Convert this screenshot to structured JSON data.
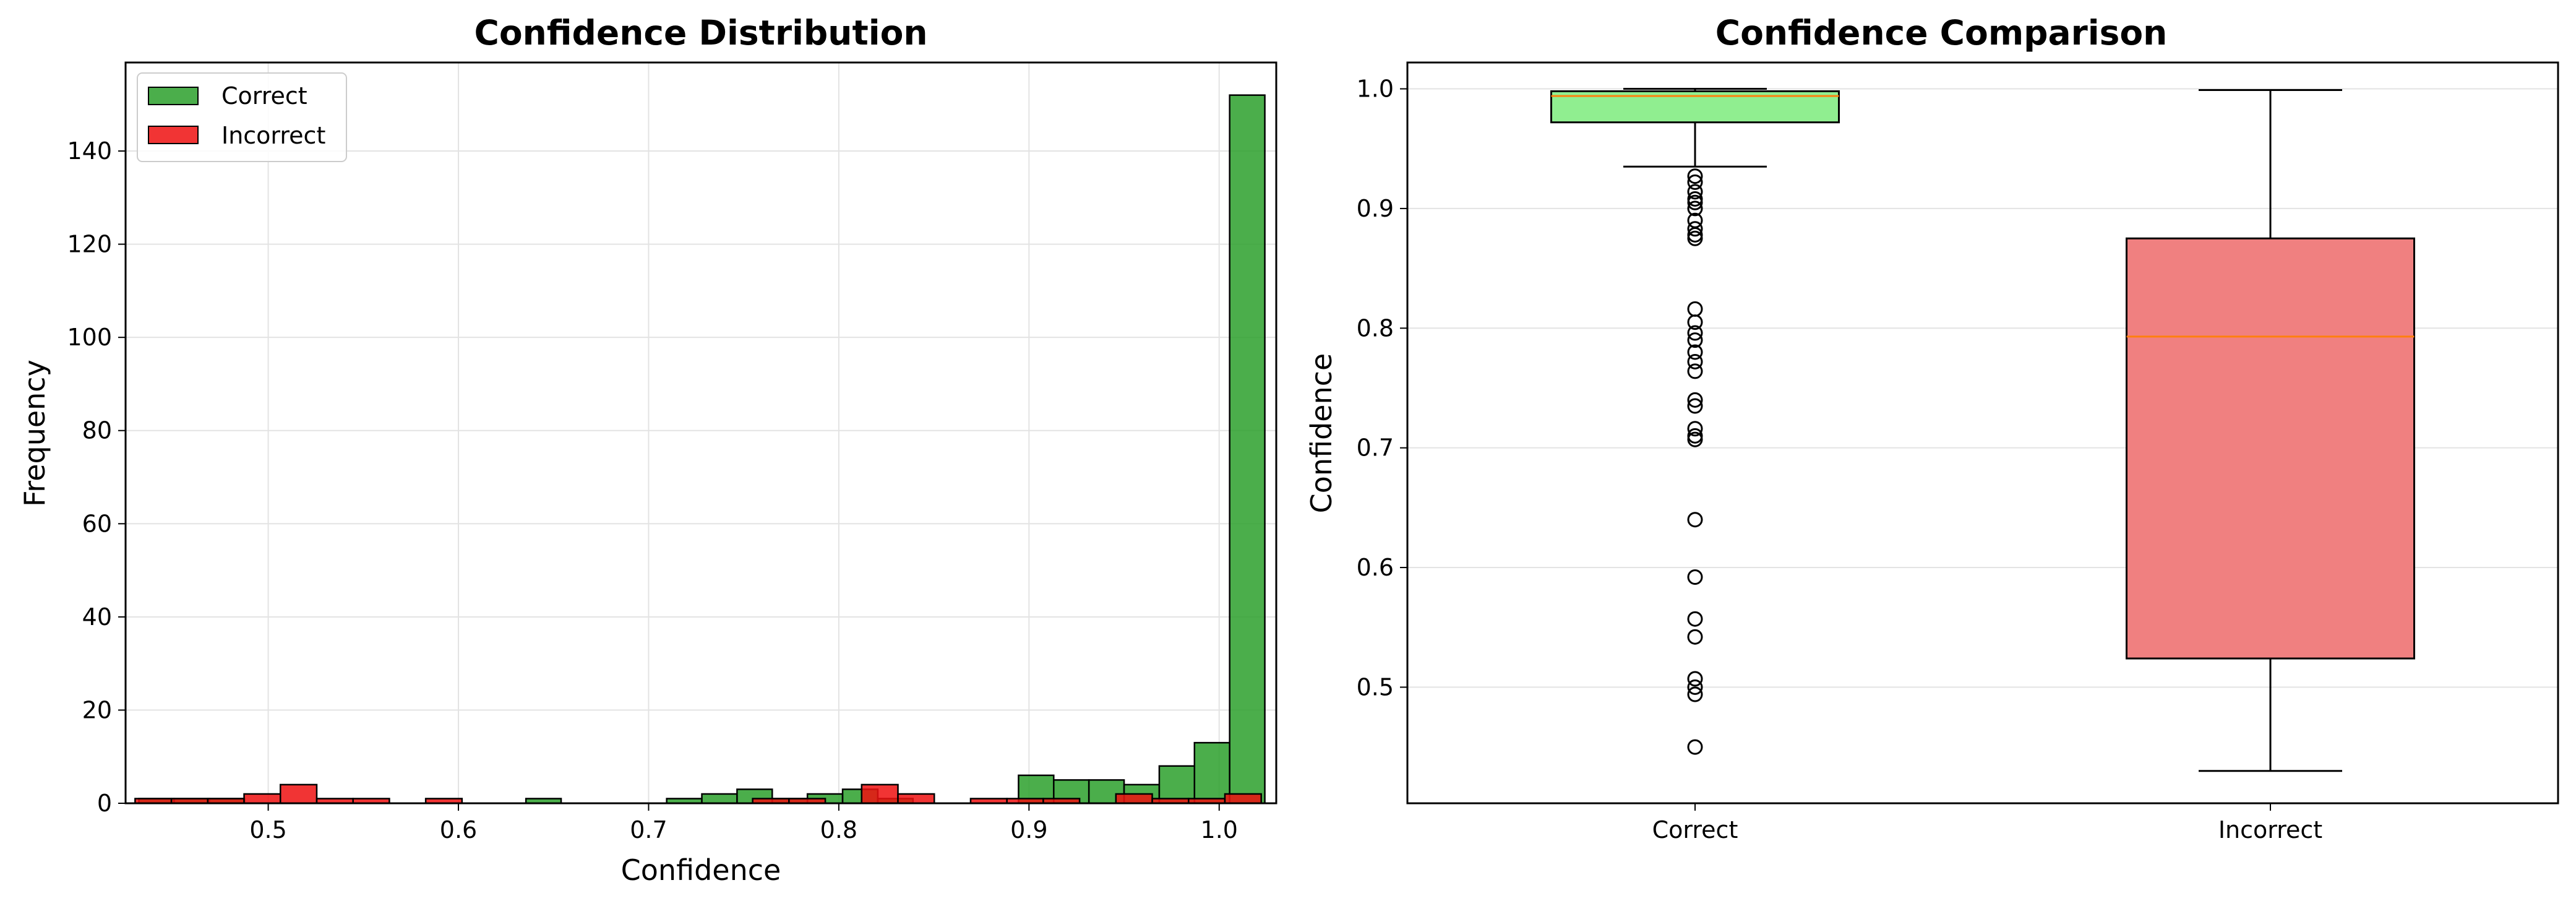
{
  "chart_data": [
    {
      "type": "bar",
      "subtype": "histogram",
      "title": "Confidence Distribution",
      "xlabel": "Confidence",
      "ylabel": "Frequency",
      "xlim": [
        0.425,
        1.03
      ],
      "ylim": [
        0,
        159
      ],
      "xticks": [
        0.5,
        0.6,
        0.7,
        0.8,
        0.9,
        1.0
      ],
      "xtick_labels": [
        "0.5",
        "0.6",
        "0.7",
        "0.8",
        "0.9",
        "1.0"
      ],
      "yticks": [
        0,
        20,
        40,
        60,
        80,
        100,
        120,
        140
      ],
      "ytick_labels": [
        "0",
        "20",
        "40",
        "60",
        "80",
        "100",
        "120",
        "140"
      ],
      "grid": true,
      "legend_position": "top-left",
      "series": [
        {
          "name": "Correct",
          "color": "#2ca02c",
          "bin_start": 0.432,
          "bin_width": 0.0185,
          "values": [
            1,
            1,
            1,
            0,
            0,
            0,
            0,
            0,
            0,
            0,
            0,
            1,
            0,
            0,
            0,
            1,
            2,
            3,
            1,
            2,
            3,
            1,
            0,
            0,
            0,
            6,
            5,
            5,
            4,
            8,
            13,
            152
          ]
        },
        {
          "name": "Incorrect",
          "color": "#ee1111",
          "bin_start": 0.43,
          "bin_width": 0.0191,
          "values": [
            1,
            1,
            1,
            2,
            4,
            1,
            1,
            0,
            1,
            0,
            0,
            0,
            0,
            0,
            0,
            0,
            0,
            1,
            1,
            0,
            4,
            2,
            0,
            1,
            1,
            1,
            0,
            2,
            1,
            1,
            2
          ]
        }
      ]
    },
    {
      "type": "box",
      "title": "Confidence Comparison",
      "ylabel": "Confidence",
      "xlabel": "",
      "ylim": [
        0.403,
        1.022
      ],
      "yticks": [
        0.5,
        0.6,
        0.7,
        0.8,
        0.9,
        1.0
      ],
      "ytick_labels": [
        "0.5",
        "0.6",
        "0.7",
        "0.8",
        "0.9",
        "1.0"
      ],
      "categories": [
        "Correct",
        "Incorrect"
      ],
      "grid": true,
      "boxes": [
        {
          "label": "Correct",
          "color": "#90ee90",
          "whisker_low": 0.935,
          "q1": 0.972,
          "median": 0.994,
          "q3": 0.998,
          "whisker_high": 1.0,
          "outliers": [
            0.927,
            0.922,
            0.914,
            0.908,
            0.905,
            0.9,
            0.89,
            0.883,
            0.878,
            0.875,
            0.816,
            0.805,
            0.796,
            0.79,
            0.78,
            0.772,
            0.764,
            0.74,
            0.735,
            0.716,
            0.71,
            0.707,
            0.64,
            0.592,
            0.557,
            0.542,
            0.507,
            0.5,
            0.494,
            0.45
          ]
        },
        {
          "label": "Incorrect",
          "color": "#f08080",
          "whisker_low": 0.43,
          "q1": 0.524,
          "median": 0.793,
          "q3": 0.875,
          "whisker_high": 0.999,
          "outliers": []
        }
      ],
      "median_color": "#ff7f0e"
    }
  ]
}
